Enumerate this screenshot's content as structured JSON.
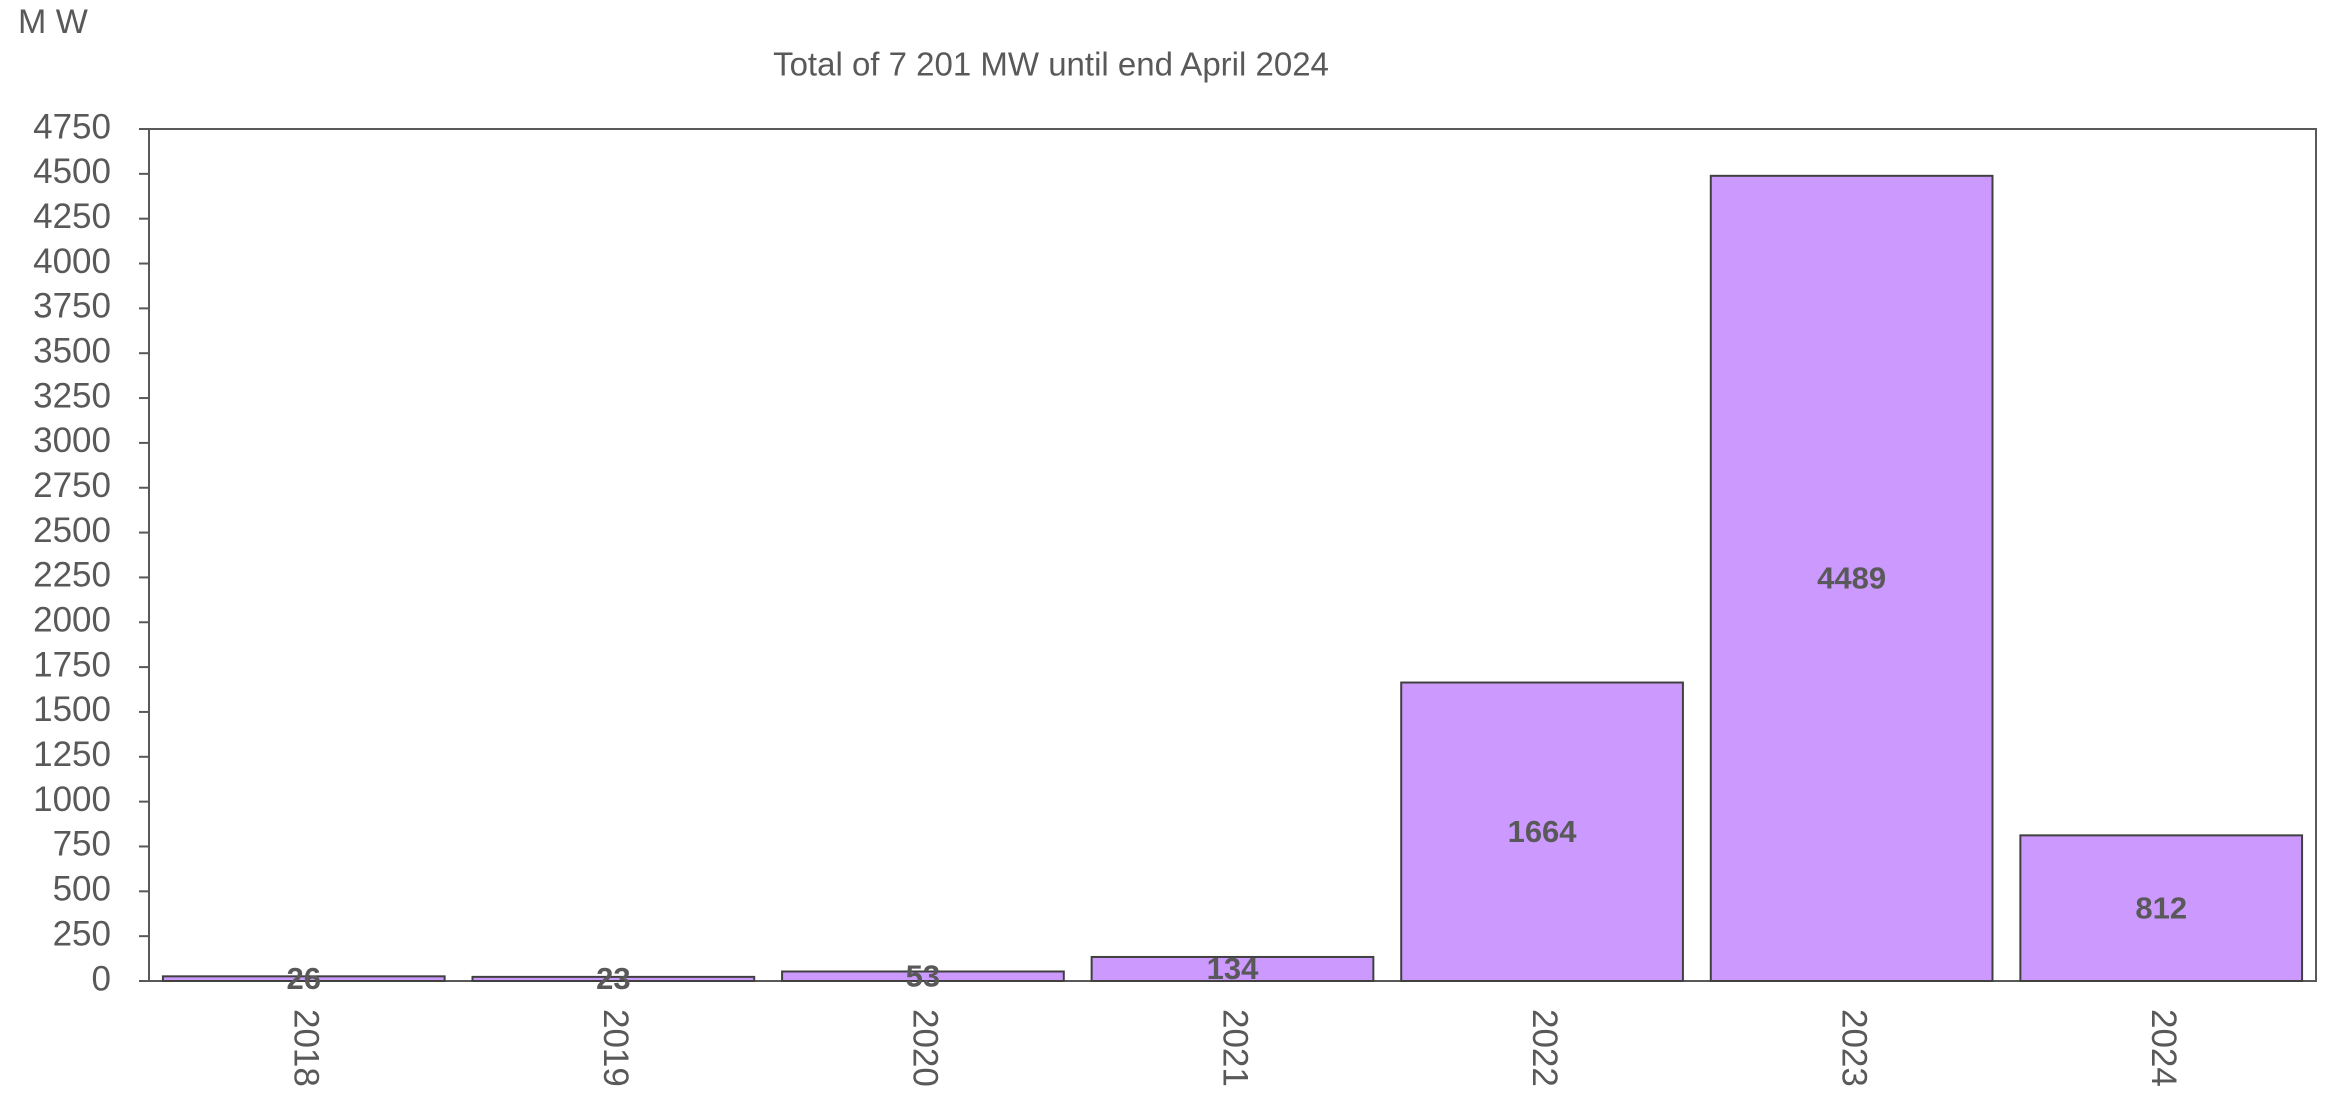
{
  "chart_data": {
    "type": "bar",
    "title": "Total of 7 201 MW until end April 2024",
    "y_label": "M W",
    "categories": [
      "2018",
      "2019",
      "2020",
      "2021",
      "2022",
      "2023",
      "2024"
    ],
    "values": [
      26,
      23,
      53,
      134,
      1664,
      4489,
      812
    ],
    "color": "#cc99ff",
    "ylim": [
      0,
      4750
    ],
    "yticks": [
      0,
      250,
      500,
      750,
      1000,
      1250,
      1500,
      1750,
      2000,
      2250,
      2500,
      2750,
      3000,
      3250,
      3500,
      3750,
      4000,
      4250,
      4500,
      4750
    ],
    "grid": false
  }
}
